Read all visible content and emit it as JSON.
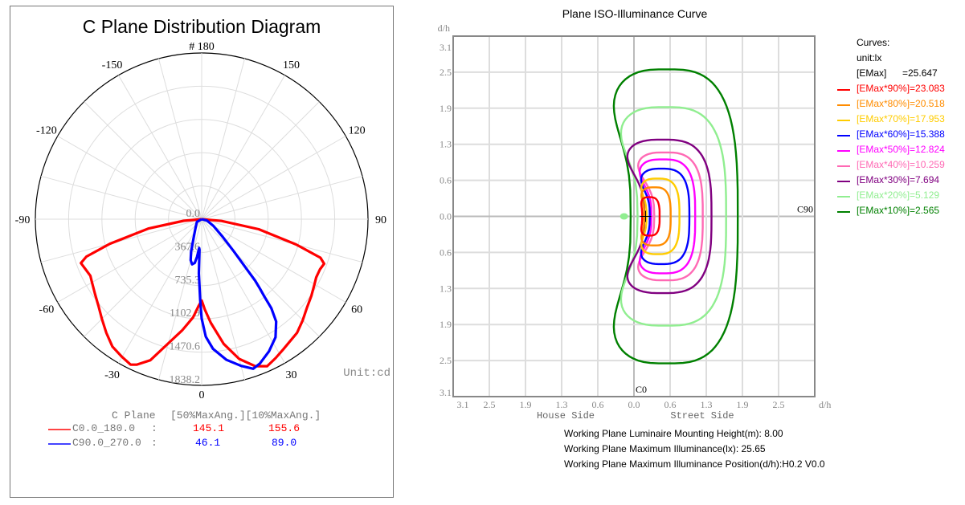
{
  "chart_data": [
    {
      "type": "polar",
      "title": "C Plane Distribution Diagram",
      "unit_label": "Unit:cd",
      "angle_labels": [
        "# 180",
        "150",
        "120",
        "90",
        "60",
        "30",
        "0",
        "-30",
        "-60",
        "-90",
        "-120",
        "-150"
      ],
      "angle_values": [
        180,
        150,
        120,
        90,
        60,
        30,
        0,
        -30,
        -60,
        -90,
        -120,
        -150
      ],
      "radial_labels": [
        "0.0",
        "367.6",
        "735.3",
        "1102.9",
        "1470.6",
        "1838.2"
      ],
      "radial_values": [
        0,
        367.6,
        735.3,
        1102.9,
        1470.6,
        1838.2
      ],
      "rlim": [
        0,
        1838.2
      ],
      "legend": {
        "header": [
          "C Plane",
          "[50%MaxAng.][10%MaxAng.]"
        ],
        "rows": [
          {
            "name": "C0.0_180.0",
            "sep": ":",
            "v50": "145.1",
            "v10": "155.6",
            "color": "#ff0000"
          },
          {
            "name": "C90.0_270.0",
            "sep": ":",
            "v50": "46.1",
            "v10": "89.0",
            "color": "#0000ff"
          }
        ]
      },
      "series": [
        {
          "name": "C0.0_180.0",
          "color": "#ff0000",
          "points": [
            [
              -90,
              0
            ],
            [
              -85,
              200
            ],
            [
              -80,
              600
            ],
            [
              -75,
              1050
            ],
            [
              -72,
              1340
            ],
            [
              -70,
              1420
            ],
            [
              -67,
              1400
            ],
            [
              -63,
              1380
            ],
            [
              -60,
              1400
            ],
            [
              -55,
              1440
            ],
            [
              -50,
              1490
            ],
            [
              -45,
              1560
            ],
            [
              -40,
              1640
            ],
            [
              -35,
              1720
            ],
            [
              -30,
              1760
            ],
            [
              -26,
              1790
            ],
            [
              -24,
              1760
            ],
            [
              -20,
              1660
            ],
            [
              -15,
              1420
            ],
            [
              -10,
              1250
            ],
            [
              -5,
              1090
            ],
            [
              -2,
              960
            ],
            [
              0,
              900
            ],
            [
              2,
              1000
            ],
            [
              5,
              1150
            ],
            [
              10,
              1400
            ],
            [
              15,
              1600
            ],
            [
              20,
              1730
            ],
            [
              24,
              1780
            ],
            [
              28,
              1740
            ],
            [
              32,
              1700
            ],
            [
              40,
              1640
            ],
            [
              45,
              1580
            ],
            [
              50,
              1520
            ],
            [
              55,
              1480
            ],
            [
              60,
              1440
            ],
            [
              63,
              1420
            ],
            [
              67,
              1420
            ],
            [
              70,
              1440
            ],
            [
              72,
              1380
            ],
            [
              75,
              1080
            ],
            [
              80,
              640
            ],
            [
              85,
              220
            ],
            [
              90,
              0
            ]
          ]
        },
        {
          "name": "C90.0_270.0",
          "color": "#0000ff",
          "points": [
            [
              -90,
              0
            ],
            [
              -60,
              60
            ],
            [
              -40,
              100
            ],
            [
              -25,
              200
            ],
            [
              -18,
              380
            ],
            [
              -15,
              470
            ],
            [
              -12,
              510
            ],
            [
              -9,
              490
            ],
            [
              -7,
              420
            ],
            [
              -5,
              320
            ],
            [
              -4,
              340
            ],
            [
              -3,
              600
            ],
            [
              -1,
              900
            ],
            [
              0,
              1100
            ],
            [
              2,
              1300
            ],
            [
              5,
              1440
            ],
            [
              10,
              1580
            ],
            [
              15,
              1680
            ],
            [
              19,
              1750
            ],
            [
              22,
              1720
            ],
            [
              27,
              1640
            ],
            [
              32,
              1540
            ],
            [
              36,
              1400
            ],
            [
              38,
              1250
            ],
            [
              39,
              1100
            ],
            [
              40,
              1000
            ],
            [
              41,
              900
            ],
            [
              42,
              750
            ],
            [
              45,
              500
            ],
            [
              50,
              300
            ],
            [
              60,
              150
            ],
            [
              75,
              60
            ],
            [
              90,
              0
            ]
          ]
        }
      ]
    },
    {
      "type": "contour",
      "title": "Plane ISO-Illuminance Curve",
      "y_axis_title": "d/h",
      "x_axis_title": "d/h",
      "y_tick_labels": [
        "3.1",
        "2.5",
        "1.9",
        "1.3",
        "0.6",
        "0.0",
        "0.6",
        "1.3",
        "1.9",
        "2.5",
        "3.1"
      ],
      "x_tick_labels": [
        "3.1",
        "2.5",
        "1.9",
        "1.3",
        "0.6",
        "0.0",
        "0.6",
        "1.3",
        "1.9",
        "2.5"
      ],
      "x_side_labels": [
        "House Side",
        "Street Side"
      ],
      "markers": {
        "c0": "C0",
        "c90": "C90"
      },
      "xlim": [
        -3.1,
        3.1
      ],
      "ylim": [
        -3.1,
        3.1
      ],
      "legend": {
        "header": "Curves:",
        "unit": "unit:lx",
        "emax_label": "[EMax]",
        "emax_value": "=25.647",
        "items": [
          {
            "label": "[EMax*90%]=23.083",
            "color": "#ff0000"
          },
          {
            "label": "[EMax*80%]=20.518",
            "color": "#ff8c00"
          },
          {
            "label": "[EMax*70%]=17.953",
            "color": "#ffcc00"
          },
          {
            "label": "[EMax*60%]=15.388",
            "color": "#0000ff"
          },
          {
            "label": "[EMax*50%]=12.824",
            "color": "#ff00ff"
          },
          {
            "label": "[EMax*40%]=10.259",
            "color": "#ff69b4"
          },
          {
            "label": "[EMax*30%]=7.694",
            "color": "#800080"
          },
          {
            "label": "[EMax*20%]=5.129",
            "color": "#90ee90"
          },
          {
            "label": "[EMax*10%]=2.565",
            "color": "#008000"
          }
        ]
      },
      "contours": [
        {
          "level": 0.9,
          "color": "#ff0000",
          "left": 0.09,
          "right": 0.44,
          "half": 0.33,
          "notch": 0.32
        },
        {
          "level": 0.8,
          "color": "#ff8c00",
          "left": 0.06,
          "right": 0.63,
          "half": 0.5,
          "notch": 0.45
        },
        {
          "level": 0.7,
          "color": "#ffcc00",
          "left": 0.03,
          "right": 0.78,
          "half": 0.65,
          "notch": 0.55
        },
        {
          "level": 0.6,
          "color": "#0000ff",
          "left": -0.01,
          "right": 0.95,
          "half": 0.82,
          "notch": 0.65
        },
        {
          "level": 0.5,
          "color": "#ff00ff",
          "left": -0.06,
          "right": 1.05,
          "half": 0.98,
          "notch": 0.72
        },
        {
          "level": 0.4,
          "color": "#ff69b4",
          "left": -0.12,
          "right": 1.18,
          "half": 1.1,
          "notch": 0.8
        },
        {
          "level": 0.3,
          "color": "#800080",
          "left": -0.35,
          "right": 1.33,
          "half": 1.32,
          "notch": 0.7
        },
        {
          "level": 0.2,
          "color": "#90ee90",
          "left": -0.5,
          "right": 1.58,
          "half": 1.88,
          "notch": 0.6
        },
        {
          "level": 0.1,
          "color": "#008000",
          "left": -0.66,
          "right": 1.78,
          "half": 2.53,
          "notch": 0.55
        }
      ],
      "max_position": {
        "h": 0.2,
        "v": 0.0
      },
      "info": [
        "Working Plane Luminaire Mounting Height(m): 8.00",
        "Working Plane Maximum Illuminance(lx): 25.65",
        "Working Plane Maximum Illuminance Position(d/h):H0.2 V0.0"
      ]
    }
  ]
}
